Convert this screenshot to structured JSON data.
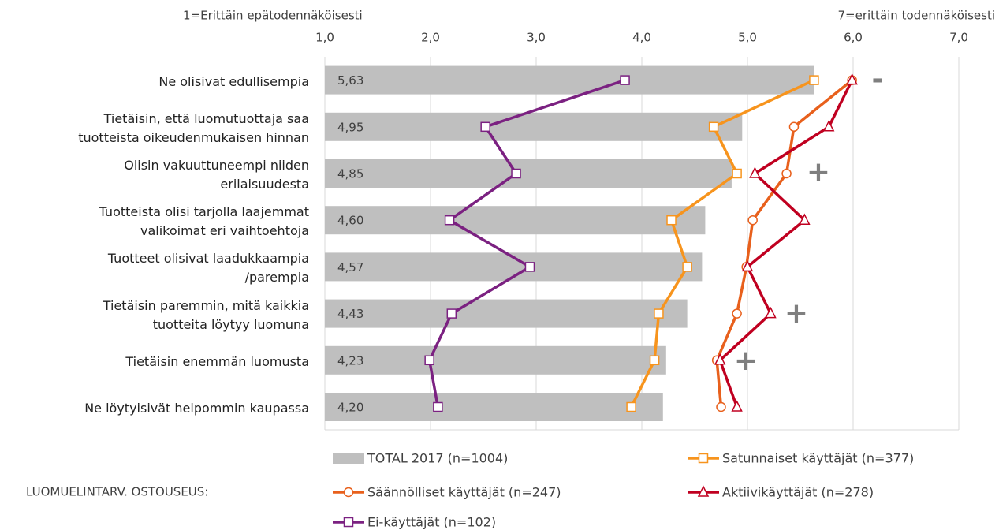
{
  "chart_data": {
    "type": "bar",
    "orientation": "horizontal",
    "left_label": "1=Erittäin  epätodennäköisesti",
    "right_label": "7=erittäin  todennäköisesti",
    "legend_prefix": "LUOMUELINTARV.  OSTOUSEUS:",
    "categories": [
      "Ne olisivat edullisempia",
      "Tietäisin, että luomutuottaja saa\ntuotteista oikeudenmukaisen hinnan",
      "Olisin vakuuttuneempi niiden\nerilaisuudesta",
      "Tuotteista olisi tarjolla laajemmat\nvalikoimat eri vaihtoehtoja",
      "Tuotteet olisivat laadukkaampia\n/parempia",
      "Tietäisin paremmin, mitä kaikkia\ntuotteita löytyy luomuna",
      "Tietäisin enemmän luomusta",
      "Ne löytyisivät helpommin kaupassa"
    ],
    "series": [
      {
        "name": "TOTAL 2017 (n=1004)",
        "style": "bar",
        "color": "#bfbfbf",
        "values": [
          5.63,
          4.95,
          4.85,
          4.6,
          4.57,
          4.43,
          4.23,
          4.2
        ],
        "value_labels": [
          "5,63",
          "4,95",
          "4,85",
          "4,60",
          "4,57",
          "4,43",
          "4,23",
          "4,20"
        ]
      },
      {
        "name": "Satunnaiset käyttäjät (n=377)",
        "style": "line",
        "marker": "square",
        "color": "#f7941d",
        "values": [
          5.63,
          4.68,
          4.9,
          4.28,
          4.43,
          4.16,
          4.12,
          3.9
        ]
      },
      {
        "name": "Säännölliset käyttäjät (n=247)",
        "style": "line",
        "marker": "circle",
        "color": "#e8601c",
        "values": [
          5.99,
          5.44,
          5.37,
          5.05,
          4.99,
          4.9,
          4.71,
          4.75
        ]
      },
      {
        "name": "Aktiivikäyttäjät (n=278)",
        "style": "line",
        "marker": "triangle",
        "color": "#c00020",
        "values": [
          5.99,
          5.77,
          5.07,
          5.54,
          5.0,
          5.22,
          4.74,
          4.9
        ]
      },
      {
        "name": "Ei-käyttäjät (n=102)",
        "style": "line",
        "marker": "square",
        "color": "#7b2181",
        "values": [
          3.84,
          2.52,
          2.81,
          2.18,
          2.94,
          2.2,
          1.99,
          2.07
        ]
      }
    ],
    "annotations": [
      "-",
      "+",
      "+",
      "+"
    ],
    "xlim": [
      1,
      7
    ],
    "xticks": [
      {
        "value": 1,
        "label": "1,0"
      },
      {
        "value": 2,
        "label": "2,0"
      },
      {
        "value": 3,
        "label": "3,0"
      },
      {
        "value": 4,
        "label": "4,0"
      },
      {
        "value": 5,
        "label": "5,0"
      },
      {
        "value": 6,
        "label": "6,0"
      },
      {
        "value": 7,
        "label": "7,0"
      }
    ],
    "grid": true
  }
}
